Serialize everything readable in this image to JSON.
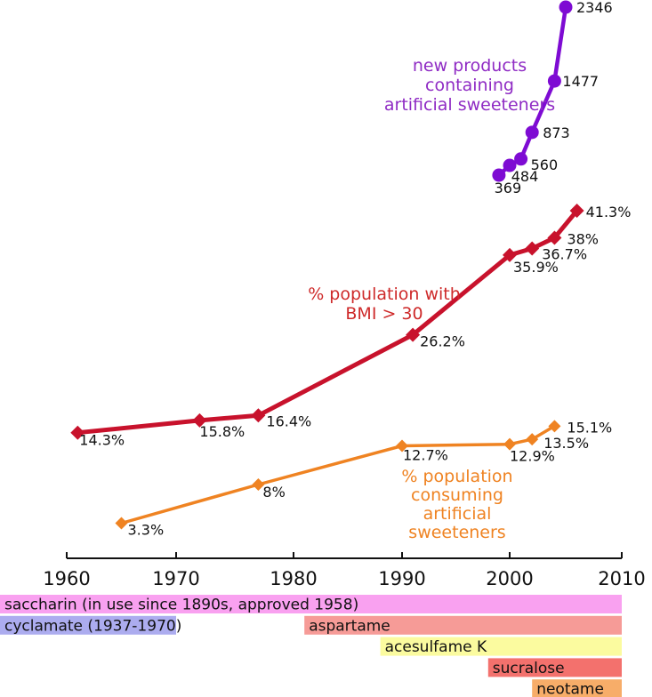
{
  "chart_data": {
    "type": "line",
    "title": "",
    "xlabel": "",
    "ylabel": "",
    "grid": false,
    "x_axis": {
      "range": [
        1960,
        2010
      ],
      "ticks": [
        1960,
        1970,
        1980,
        1990,
        2000,
        2010
      ]
    },
    "series": [
      {
        "id": "new-products",
        "name": "new products containing artificial sweeteners",
        "annotation_lines": [
          "new products",
          "containing",
          "artificial sweeteners"
        ],
        "color": "#7E0BD3",
        "text_color": "#8F2BC4",
        "marker": "circle",
        "unit": "count",
        "points": [
          {
            "x": 1999,
            "y": 369,
            "label": "369",
            "label_dx": 10,
            "label_dy": 20,
            "label_anchor": "middle"
          },
          {
            "x": 2000,
            "y": 484,
            "label": "484",
            "label_dx": 17,
            "label_dy": 18,
            "label_anchor": "middle"
          },
          {
            "x": 2001,
            "y": 560,
            "label": "560",
            "label_dx": 11,
            "label_dy": 12,
            "label_anchor": "start"
          },
          {
            "x": 2002,
            "y": 873,
            "label": "873",
            "label_dx": 12,
            "label_dy": 6,
            "label_anchor": "start"
          },
          {
            "x": 2004,
            "y": 1477,
            "label": "1477",
            "label_dx": 9,
            "label_dy": 6,
            "label_anchor": "start"
          },
          {
            "x": 2005,
            "y": 2346,
            "label": "2346",
            "label_dx": 12,
            "label_dy": 6,
            "label_anchor": "start"
          }
        ]
      },
      {
        "id": "bmi",
        "name": "% population with BMI > 30",
        "annotation_lines": [
          "% population with",
          "BMI > 30"
        ],
        "color": "#C8122C",
        "text_color": "#CE2A2A",
        "marker": "diamond",
        "unit": "percent",
        "points": [
          {
            "x": 1961,
            "y": 14.3,
            "label": "14.3%",
            "label_dx": 2,
            "label_dy": 14,
            "label_anchor": "start"
          },
          {
            "x": 1972,
            "y": 15.8,
            "label": "15.8%",
            "label_dx": 0,
            "label_dy": 18,
            "label_anchor": "start"
          },
          {
            "x": 1977,
            "y": 16.4,
            "label": "16.4%",
            "label_dx": 9,
            "label_dy": 12,
            "label_anchor": "start"
          },
          {
            "x": 1991,
            "y": 26.2,
            "label": "26.2%",
            "label_dx": 8,
            "label_dy": 13,
            "label_anchor": "start"
          },
          {
            "x": 2000,
            "y": 35.9,
            "label": "35.9%",
            "label_dx": 4,
            "label_dy": 19,
            "label_anchor": "start"
          },
          {
            "x": 2002,
            "y": 36.7,
            "label": "36.7%",
            "label_dx": 11,
            "label_dy": 12,
            "label_anchor": "start"
          },
          {
            "x": 2004,
            "y": 38,
            "label": "38%",
            "label_dx": 14,
            "label_dy": 7,
            "label_anchor": "start"
          },
          {
            "x": 2006,
            "y": 41.3,
            "label": "41.3%",
            "label_dx": 10,
            "label_dy": 7,
            "label_anchor": "start"
          }
        ]
      },
      {
        "id": "consuming",
        "name": "% population consuming artificial sweeteners",
        "annotation_lines": [
          "% population",
          "consuming",
          "artificial",
          "sweeteners"
        ],
        "color": "#EF8322",
        "text_color": "#EF8322",
        "marker": "diamond",
        "unit": "percent",
        "points": [
          {
            "x": 1965,
            "y": 3.3,
            "label": "3.3%",
            "label_dx": 7,
            "label_dy": 13,
            "label_anchor": "start"
          },
          {
            "x": 1977,
            "y": 8,
            "label": "8%",
            "label_dx": 5,
            "label_dy": 14,
            "label_anchor": "start"
          },
          {
            "x": 1990,
            "y": 12.7,
            "label": "12.7%",
            "label_dx": 1,
            "label_dy": 16,
            "label_anchor": "start"
          },
          {
            "x": 2000,
            "y": 12.9,
            "label": "12.9%",
            "label_dx": 0,
            "label_dy": 19,
            "label_anchor": "start"
          },
          {
            "x": 2002,
            "y": 13.5,
            "label": "13.5%",
            "label_dx": 13,
            "label_dy": 10,
            "label_anchor": "start"
          },
          {
            "x": 2004,
            "y": 15.1,
            "label": "15.1%",
            "label_dx": 14,
            "label_dy": 7,
            "label_anchor": "start"
          }
        ]
      }
    ],
    "annotations": [
      {
        "series": "new-products",
        "x": 528,
        "y": 80,
        "line_height": 22,
        "align": "middle"
      },
      {
        "series": "bmi",
        "x": 432,
        "y": 337,
        "line_height": 22,
        "align": "middle"
      },
      {
        "series": "consuming",
        "x": 514,
        "y": 542,
        "line_height": 21,
        "align": "middle"
      }
    ],
    "timeline_bars": [
      {
        "id": "saccharin",
        "label": "saccharin (in use since 1890s, approved 1958)",
        "color": "#F9A1F0",
        "start": "edge",
        "end": 2010,
        "row": 0
      },
      {
        "id": "cyclamate",
        "label": "cyclamate (1937-1970)",
        "color": "#ACACEF",
        "start": "edge",
        "end": 1970,
        "row": 1
      },
      {
        "id": "aspartame",
        "label": "aspartame",
        "color": "#F69B97",
        "start": 1981,
        "end": 2010,
        "row": 1
      },
      {
        "id": "acesulfame-k",
        "label": "acesulfame K",
        "color": "#FBFB9F",
        "start": 1988,
        "end": 2010,
        "row": 2
      },
      {
        "id": "sucralose",
        "label": "sucralose",
        "color": "#F3716D",
        "start": 1998,
        "end": 2010,
        "row": 3
      },
      {
        "id": "neotame",
        "label": "neotame",
        "color": "#F7AD69",
        "start": 2002,
        "end": 2010,
        "row": 4
      }
    ]
  }
}
